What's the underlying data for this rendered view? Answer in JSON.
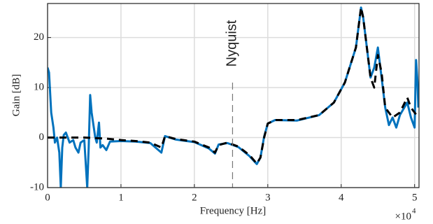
{
  "chart_data": {
    "type": "line",
    "xlabel": "Frequency [Hz]",
    "ylabel": "Gain [dB]",
    "x_multiplier": "×10",
    "x_multiplier_exponent": "4",
    "xlim": [
      0,
      5.06
    ],
    "xticks": [
      0,
      1,
      2,
      3,
      4,
      5
    ],
    "ylim": [
      -10,
      26.8
    ],
    "yticks": [
      -10,
      0,
      10,
      20
    ],
    "grid": true,
    "annotation": {
      "text": "Nyquist",
      "x": 2.52
    },
    "series": [
      {
        "color": "#0072bd",
        "style": "solid",
        "x": [
          0,
          0.02,
          0.05,
          0.08,
          0.1,
          0.13,
          0.16,
          0.18,
          0.2,
          0.22,
          0.25,
          0.3,
          0.35,
          0.38,
          0.42,
          0.45,
          0.5,
          0.54,
          0.56,
          0.58,
          0.6,
          0.63,
          0.65,
          0.67,
          0.7,
          0.72,
          0.75,
          0.8,
          0.85,
          1.0,
          1.2,
          1.4,
          1.55,
          1.6,
          1.75,
          2.0,
          2.2,
          2.28,
          2.33,
          2.45,
          2.6,
          2.75,
          2.85,
          2.9,
          2.95,
          3.0,
          3.1,
          3.4,
          3.7,
          3.9,
          4.05,
          4.2,
          4.27,
          4.3,
          4.4,
          4.45,
          4.5,
          4.55,
          4.6,
          4.65,
          4.7,
          4.75,
          4.8,
          4.9,
          4.95,
          5.0,
          5.02,
          5.04,
          5.05
        ],
        "values": [
          14,
          13,
          5,
          2,
          -1,
          0,
          -3,
          -10,
          -2,
          0.5,
          1,
          -1,
          -0.5,
          -2,
          -3,
          -1,
          -0.5,
          -10,
          -2,
          8.5,
          5,
          2,
          0,
          -1,
          3,
          -2,
          -1.5,
          -2.5,
          -0.8,
          -0.7,
          -0.8,
          -1.1,
          -3,
          0.3,
          -0.4,
          -0.9,
          -2.2,
          -3.2,
          -1.4,
          -1.1,
          -1.9,
          -3.7,
          -5.3,
          -4,
          0.2,
          2.8,
          3.5,
          3.4,
          4.5,
          7,
          11,
          18,
          26,
          24,
          12,
          14,
          18,
          12,
          6,
          2.5,
          4,
          2,
          4.5,
          7,
          4,
          2,
          15.5,
          11,
          6
        ]
      },
      {
        "color": "#000000",
        "style": "dashed",
        "x": [
          0,
          0.5,
          0.8,
          1.0,
          1.2,
          1.4,
          1.55,
          1.6,
          1.75,
          2.0,
          2.2,
          2.28,
          2.33,
          2.45,
          2.6,
          2.75,
          2.85,
          2.9,
          2.95,
          3.0,
          3.1,
          3.4,
          3.7,
          3.9,
          4.05,
          4.2,
          4.27,
          4.3,
          4.4,
          4.45,
          4.5,
          4.55,
          4.6,
          4.7,
          4.8,
          4.9,
          4.95,
          5.0,
          5.05
        ],
        "values": [
          0,
          0,
          -0.2,
          -0.5,
          -0.7,
          -1,
          -2,
          0.3,
          -0.3,
          -0.8,
          -2,
          -3,
          -1.5,
          -1,
          -1.8,
          -3.5,
          -5.2,
          -4,
          0,
          2.8,
          3.5,
          3.5,
          4.5,
          7,
          11,
          18,
          26,
          24,
          12,
          10,
          16.5,
          13,
          6,
          4,
          5,
          8,
          6,
          5,
          4
        ]
      }
    ]
  }
}
